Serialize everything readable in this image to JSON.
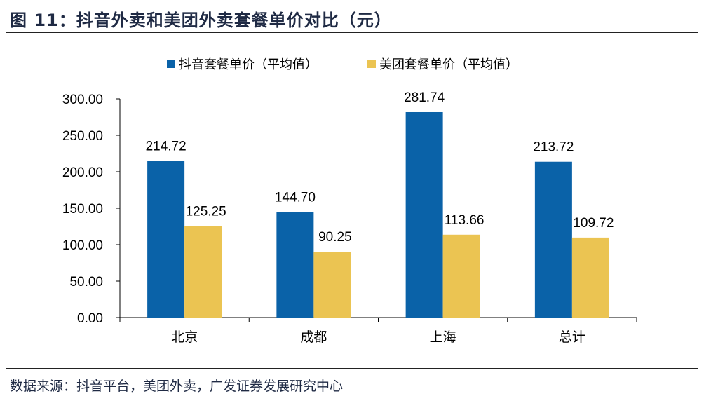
{
  "figure": {
    "title": "图 11：抖音外卖和美团外卖套餐单价对比（元）",
    "source": "数据来源：抖音平台，美团外卖，广发证券发展研究中心"
  },
  "colors": {
    "series1": "#0A62A8",
    "series2": "#EBC452"
  },
  "chart_data": {
    "type": "bar",
    "categories": [
      "北京",
      "成都",
      "上海",
      "总计"
    ],
    "series": [
      {
        "name": "抖音套餐单价（平均值）",
        "values": [
          214.72,
          144.7,
          281.74,
          213.72
        ]
      },
      {
        "name": "美团套餐单价（平均值）",
        "values": [
          125.25,
          90.25,
          113.66,
          109.72
        ]
      }
    ],
    "value_labels": [
      [
        "214.72",
        "144.70",
        "281.74",
        "213.72"
      ],
      [
        "125.25",
        "90.25",
        "113.66",
        "109.72"
      ]
    ],
    "yticks": [
      "0.00",
      "50.00",
      "100.00",
      "150.00",
      "200.00",
      "250.00",
      "300.00"
    ],
    "ylim": [
      0,
      300
    ],
    "grid": false,
    "legend_position": "top-center"
  }
}
